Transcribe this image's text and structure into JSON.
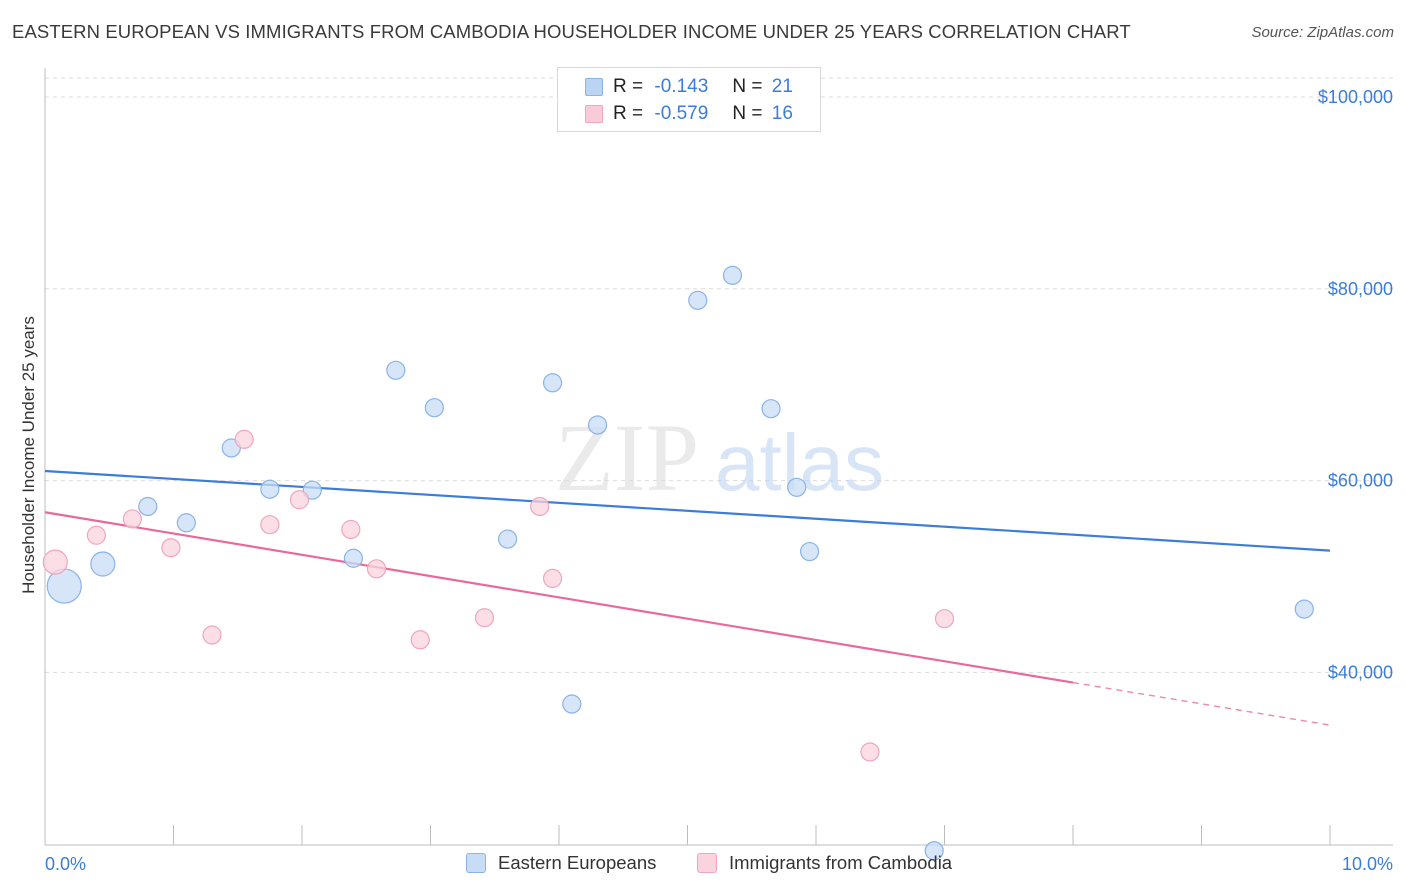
{
  "title": "EASTERN EUROPEAN VS IMMIGRANTS FROM CAMBODIA HOUSEHOLDER INCOME UNDER 25 YEARS CORRELATION CHART",
  "source": "Source: ZipAtlas.com",
  "watermark": {
    "zip": "ZIP",
    "atlas": "atlas"
  },
  "legend": {
    "r_label": "R =",
    "n_label": "N =",
    "rows": [
      {
        "r": "-0.143",
        "n": "21",
        "fill": "#bcd4f4",
        "stroke": "#8ab3e8"
      },
      {
        "r": "-0.579",
        "n": "16",
        "fill": "#f9cad7",
        "stroke": "#f0a6bd"
      }
    ]
  },
  "chart_data": {
    "type": "scatter",
    "title": "EASTERN EUROPEAN VS IMMIGRANTS FROM CAMBODIA HOUSEHOLDER INCOME UNDER 25 YEARS CORRELATION CHART",
    "xlabel": "",
    "ylabel": "Householder Income Under 25 years",
    "xlim": [
      0,
      10
    ],
    "ylim": [
      22000,
      102000
    ],
    "x_tick_labels": [
      "0.0%",
      "10.0%"
    ],
    "y_tick_labels": [
      "$40,000",
      "$60,000",
      "$80,000",
      "$100,000"
    ],
    "y_ticks": [
      40000,
      60000,
      80000,
      100000
    ],
    "grid": true,
    "legend_position": "bottom",
    "series": [
      {
        "name": "Eastern Europeans",
        "color": "#3b7dd8",
        "fill": "#c8dcf5",
        "stroke": "#8ab3e8",
        "points": [
          {
            "x": 0.15,
            "y": 49000,
            "s": 3
          },
          {
            "x": 0.45,
            "y": 51300,
            "s": 2
          },
          {
            "x": 0.8,
            "y": 57300,
            "s": 1
          },
          {
            "x": 1.1,
            "y": 55600,
            "s": 1
          },
          {
            "x": 1.45,
            "y": 63400,
            "s": 1
          },
          {
            "x": 1.75,
            "y": 59100,
            "s": 1
          },
          {
            "x": 2.08,
            "y": 59000,
            "s": 1
          },
          {
            "x": 2.4,
            "y": 51900,
            "s": 1
          },
          {
            "x": 2.73,
            "y": 71500,
            "s": 1
          },
          {
            "x": 3.03,
            "y": 67600,
            "s": 1
          },
          {
            "x": 3.6,
            "y": 53900,
            "s": 1
          },
          {
            "x": 3.95,
            "y": 70200,
            "s": 1
          },
          {
            "x": 4.1,
            "y": 36700,
            "s": 1
          },
          {
            "x": 4.3,
            "y": 65800,
            "s": 1
          },
          {
            "x": 5.08,
            "y": 78800,
            "s": 1
          },
          {
            "x": 5.35,
            "y": 81400,
            "s": 1
          },
          {
            "x": 5.65,
            "y": 67500,
            "s": 1
          },
          {
            "x": 5.95,
            "y": 52600,
            "s": 1
          },
          {
            "x": 5.85,
            "y": 59300,
            "s": 1
          },
          {
            "x": 6.92,
            "y": 21400,
            "s": 1
          },
          {
            "x": 9.8,
            "y": 46600,
            "s": 1
          }
        ],
        "trend": {
          "x": [
            0,
            10
          ],
          "y": [
            61000,
            52700
          ],
          "dashed_from": null
        }
      },
      {
        "name": "Immigrants from Cambodia",
        "color": "#e8699a",
        "fill": "#f9d3de",
        "stroke": "#f0a6bd",
        "points": [
          {
            "x": 0.08,
            "y": 51500,
            "s": 2
          },
          {
            "x": 0.4,
            "y": 54300,
            "s": 1
          },
          {
            "x": 0.68,
            "y": 56000,
            "s": 1
          },
          {
            "x": 0.98,
            "y": 53000,
            "s": 1
          },
          {
            "x": 1.3,
            "y": 43900,
            "s": 1
          },
          {
            "x": 1.55,
            "y": 64300,
            "s": 1
          },
          {
            "x": 1.75,
            "y": 55400,
            "s": 1
          },
          {
            "x": 1.98,
            "y": 58000,
            "s": 1
          },
          {
            "x": 2.38,
            "y": 54900,
            "s": 1
          },
          {
            "x": 2.58,
            "y": 50800,
            "s": 1
          },
          {
            "x": 2.92,
            "y": 43400,
            "s": 1
          },
          {
            "x": 3.42,
            "y": 45700,
            "s": 1
          },
          {
            "x": 3.85,
            "y": 57300,
            "s": 1
          },
          {
            "x": 3.95,
            "y": 49800,
            "s": 1
          },
          {
            "x": 6.42,
            "y": 31700,
            "s": 1
          },
          {
            "x": 7.0,
            "y": 45600,
            "s": 1
          }
        ],
        "trend": {
          "x": [
            0,
            10
          ],
          "y": [
            56700,
            34500
          ],
          "dashed_from": 8.0
        }
      }
    ]
  }
}
